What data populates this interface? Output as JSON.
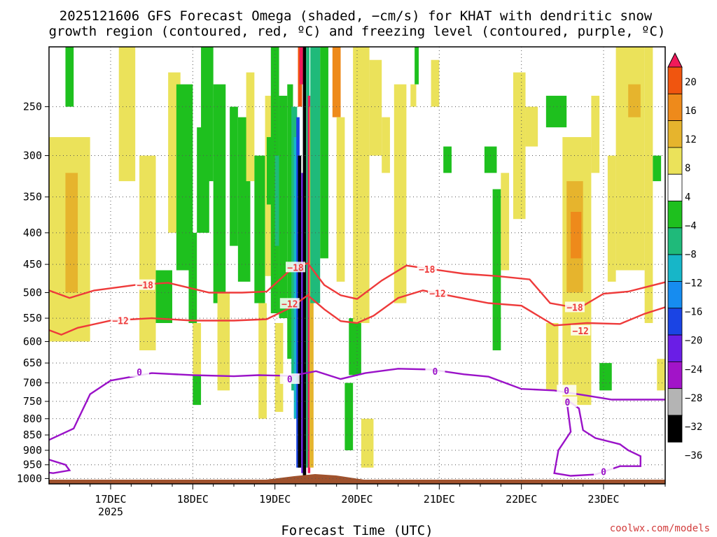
{
  "chart_data": {
    "type": "heatmap",
    "title_line1": "2025121606 GFS Forecast Omega (shaded, −cm/s) for KHAT with dendritic snow",
    "title_line2": "growth region (contoured, red, ºC) and freezing level (contoured, purple, ºC)",
    "xlabel": "Forecast Time (UTC)",
    "credit": "coolwx.com/models",
    "y_axis": {
      "ticks": [
        250,
        300,
        350,
        400,
        450,
        500,
        550,
        600,
        650,
        700,
        750,
        800,
        850,
        900,
        950,
        1000
      ],
      "range_hpa": [
        200,
        1020
      ],
      "grid": true
    },
    "x_axis": {
      "range_days": [
        16.25,
        23.75
      ],
      "ticks": [
        {
          "day": 17,
          "label": "17DEC",
          "sub": "2025"
        },
        {
          "day": 18,
          "label": "18DEC",
          "sub": ""
        },
        {
          "day": 19,
          "label": "19DEC",
          "sub": ""
        },
        {
          "day": 20,
          "label": "20DEC",
          "sub": ""
        },
        {
          "day": 21,
          "label": "21DEC",
          "sub": ""
        },
        {
          "day": 22,
          "label": "22DEC",
          "sub": ""
        },
        {
          "day": 23,
          "label": "23DEC",
          "sub": ""
        }
      ]
    },
    "colorbar": {
      "labels": [
        "20",
        "16",
        "12",
        "8",
        "4",
        "−4",
        "−8",
        "−12",
        "−16",
        "−20",
        "−24",
        "−28",
        "−32",
        "−36"
      ],
      "colors": [
        "#f0195a",
        "#f0550f",
        "#ee8a1b",
        "#e6b42d",
        "#ebe25a",
        "#ffffff",
        "#1ec01e",
        "#1fba7a",
        "#17b6c8",
        "#168cf0",
        "#1a44e4",
        "#6a1ee6",
        "#a214c8",
        "#b4b4b4",
        "#000000"
      ]
    },
    "omega_features": [
      {
        "t0": 16.25,
        "t1": 16.75,
        "p0": 280,
        "p1": 600,
        "v": 4
      },
      {
        "t0": 16.45,
        "t1": 16.6,
        "p0": 320,
        "p1": 500,
        "v": 8
      },
      {
        "t0": 17.1,
        "t1": 17.3,
        "p0": 200,
        "p1": 330,
        "v": 4
      },
      {
        "t0": 17.35,
        "t1": 17.55,
        "p0": 300,
        "p1": 620,
        "v": 4
      },
      {
        "t0": 16.45,
        "t1": 16.55,
        "p0": 200,
        "p1": 250,
        "v": -8
      },
      {
        "t0": 17.55,
        "t1": 17.75,
        "p0": 460,
        "p1": 560,
        "v": -8
      },
      {
        "t0": 17.7,
        "t1": 17.85,
        "p0": 220,
        "p1": 400,
        "v": 4
      },
      {
        "t0": 17.8,
        "t1": 18.0,
        "p0": 230,
        "p1": 460,
        "v": -8
      },
      {
        "t0": 17.95,
        "t1": 18.05,
        "p0": 400,
        "p1": 560,
        "v": -8
      },
      {
        "t0": 18.0,
        "t1": 18.1,
        "p0": 560,
        "p1": 720,
        "v": 4
      },
      {
        "t0": 18.0,
        "t1": 18.1,
        "p0": 680,
        "p1": 760,
        "v": -8
      },
      {
        "t0": 18.05,
        "t1": 18.2,
        "p0": 270,
        "p1": 400,
        "v": -8
      },
      {
        "t0": 18.1,
        "t1": 18.25,
        "p0": 200,
        "p1": 330,
        "v": -8
      },
      {
        "t0": 18.25,
        "t1": 18.4,
        "p0": 230,
        "p1": 520,
        "v": -8
      },
      {
        "t0": 18.3,
        "t1": 18.45,
        "p0": 500,
        "p1": 720,
        "v": 4
      },
      {
        "t0": 18.45,
        "t1": 18.55,
        "p0": 250,
        "p1": 420,
        "v": -8
      },
      {
        "t0": 18.55,
        "t1": 18.7,
        "p0": 260,
        "p1": 480,
        "v": -8
      },
      {
        "t0": 18.65,
        "t1": 18.75,
        "p0": 220,
        "p1": 330,
        "v": 4
      },
      {
        "t0": 18.75,
        "t1": 18.88,
        "p0": 300,
        "p1": 520,
        "v": -8
      },
      {
        "t0": 18.8,
        "t1": 18.9,
        "p0": 520,
        "p1": 800,
        "v": 4
      },
      {
        "t0": 18.88,
        "t1": 19.0,
        "p0": 240,
        "p1": 470,
        "v": 4
      },
      {
        "t0": 18.9,
        "t1": 19.0,
        "p0": 280,
        "p1": 360,
        "v": -8
      },
      {
        "t0": 18.95,
        "t1": 19.05,
        "p0": 200,
        "p1": 540,
        "v": -8
      },
      {
        "t0": 19.0,
        "t1": 19.08,
        "p0": 300,
        "p1": 420,
        "v": -12
      },
      {
        "t0": 19.0,
        "t1": 19.1,
        "p0": 560,
        "p1": 780,
        "v": 4
      },
      {
        "t0": 19.05,
        "t1": 19.15,
        "p0": 240,
        "p1": 550,
        "v": -8
      },
      {
        "t0": 19.15,
        "t1": 19.22,
        "p0": 230,
        "p1": 640,
        "v": -8
      },
      {
        "t0": 19.2,
        "t1": 19.27,
        "p0": 250,
        "p1": 720,
        "v": -12
      },
      {
        "t0": 19.23,
        "t1": 19.29,
        "p0": 280,
        "p1": 800,
        "v": -16
      },
      {
        "t0": 19.26,
        "t1": 19.3,
        "p0": 260,
        "p1": 960,
        "v": -24
      },
      {
        "t0": 19.28,
        "t1": 19.32,
        "p0": 300,
        "p1": 960,
        "v": -36
      },
      {
        "t0": 19.32,
        "t1": 19.36,
        "p0": 320,
        "p1": 980,
        "v": -28
      },
      {
        "t0": 19.34,
        "t1": 19.38,
        "p0": 200,
        "p1": 1000,
        "v": -36
      },
      {
        "t0": 19.38,
        "t1": 19.42,
        "p0": 200,
        "p1": 960,
        "v": -12
      },
      {
        "t0": 19.28,
        "t1": 19.33,
        "p0": 200,
        "p1": 250,
        "v": 16
      },
      {
        "t0": 19.3,
        "t1": 19.34,
        "p0": 200,
        "p1": 230,
        "v": 20
      },
      {
        "t0": 19.4,
        "t1": 19.43,
        "p0": 240,
        "p1": 980,
        "v": 20
      },
      {
        "t0": 19.42,
        "t1": 19.47,
        "p0": 250,
        "p1": 960,
        "v": 8
      },
      {
        "t0": 19.43,
        "t1": 19.55,
        "p0": 200,
        "p1": 520,
        "v": -12
      },
      {
        "t0": 19.55,
        "t1": 19.65,
        "p0": 200,
        "p1": 440,
        "v": -8
      },
      {
        "t0": 19.7,
        "t1": 19.8,
        "p0": 200,
        "p1": 260,
        "v": 12
      },
      {
        "t0": 19.75,
        "t1": 19.85,
        "p0": 260,
        "p1": 480,
        "v": 4
      },
      {
        "t0": 19.85,
        "t1": 19.95,
        "p0": 700,
        "p1": 900,
        "v": -8
      },
      {
        "t0": 19.9,
        "t1": 20.05,
        "p0": 550,
        "p1": 680,
        "v": -8
      },
      {
        "t0": 19.95,
        "t1": 20.15,
        "p0": 200,
        "p1": 560,
        "v": 4
      },
      {
        "t0": 20.05,
        "t1": 20.2,
        "p0": 800,
        "p1": 960,
        "v": 4
      },
      {
        "t0": 20.15,
        "t1": 20.3,
        "p0": 210,
        "p1": 300,
        "v": 4
      },
      {
        "t0": 20.3,
        "t1": 20.4,
        "p0": 260,
        "p1": 320,
        "v": 4
      },
      {
        "t0": 20.45,
        "t1": 20.6,
        "p0": 230,
        "p1": 520,
        "v": 4
      },
      {
        "t0": 20.65,
        "t1": 20.72,
        "p0": 230,
        "p1": 250,
        "v": 4
      },
      {
        "t0": 20.7,
        "t1": 20.75,
        "p0": 200,
        "p1": 230,
        "v": -8
      },
      {
        "t0": 20.9,
        "t1": 21.0,
        "p0": 210,
        "p1": 250,
        "v": 4
      },
      {
        "t0": 21.05,
        "t1": 21.15,
        "p0": 290,
        "p1": 320,
        "v": -8
      },
      {
        "t0": 21.55,
        "t1": 21.7,
        "p0": 290,
        "p1": 320,
        "v": -8
      },
      {
        "t0": 21.65,
        "t1": 21.75,
        "p0": 340,
        "p1": 620,
        "v": -8
      },
      {
        "t0": 21.75,
        "t1": 21.85,
        "p0": 320,
        "p1": 460,
        "v": 4
      },
      {
        "t0": 21.9,
        "t1": 22.05,
        "p0": 220,
        "p1": 380,
        "v": 4
      },
      {
        "t0": 22.05,
        "t1": 22.2,
        "p0": 250,
        "p1": 290,
        "v": 4
      },
      {
        "t0": 22.3,
        "t1": 22.55,
        "p0": 240,
        "p1": 270,
        "v": -8
      },
      {
        "t0": 22.3,
        "t1": 22.45,
        "p0": 560,
        "p1": 720,
        "v": 4
      },
      {
        "t0": 22.5,
        "t1": 22.85,
        "p0": 280,
        "p1": 760,
        "v": 4
      },
      {
        "t0": 22.55,
        "t1": 22.75,
        "p0": 330,
        "p1": 500,
        "v": 8
      },
      {
        "t0": 22.6,
        "t1": 22.73,
        "p0": 370,
        "p1": 440,
        "v": 12
      },
      {
        "t0": 22.85,
        "t1": 22.95,
        "p0": 240,
        "p1": 320,
        "v": 4
      },
      {
        "t0": 22.95,
        "t1": 23.1,
        "p0": 650,
        "p1": 720,
        "v": -8
      },
      {
        "t0": 23.05,
        "t1": 23.15,
        "p0": 300,
        "p1": 480,
        "v": 4
      },
      {
        "t0": 23.15,
        "t1": 23.5,
        "p0": 200,
        "p1": 460,
        "v": 4
      },
      {
        "t0": 23.3,
        "t1": 23.45,
        "p0": 230,
        "p1": 260,
        "v": 8
      },
      {
        "t0": 23.5,
        "t1": 23.6,
        "p0": 200,
        "p1": 560,
        "v": 4
      },
      {
        "t0": 23.6,
        "t1": 23.7,
        "p0": 300,
        "p1": 330,
        "v": -8
      },
      {
        "t0": 23.65,
        "t1": 23.75,
        "p0": 640,
        "p1": 720,
        "v": 4
      }
    ],
    "contours": [
      {
        "name": "minus18",
        "label": "−18",
        "color": "#ee3a3a",
        "points": [
          [
            16.25,
            496
          ],
          [
            16.5,
            510
          ],
          [
            16.8,
            496
          ],
          [
            17.3,
            486
          ],
          [
            17.7,
            482
          ],
          [
            18.2,
            500
          ],
          [
            18.6,
            500
          ],
          [
            18.9,
            498
          ],
          [
            19.2,
            458
          ],
          [
            19.4,
            448
          ],
          [
            19.6,
            486
          ],
          [
            19.8,
            505
          ],
          [
            20.0,
            512
          ],
          [
            20.3,
            478
          ],
          [
            20.6,
            452
          ],
          [
            20.9,
            458
          ],
          [
            21.3,
            466
          ],
          [
            21.7,
            470
          ],
          [
            22.1,
            476
          ],
          [
            22.35,
            520
          ],
          [
            22.7,
            530
          ],
          [
            23.0,
            502
          ],
          [
            23.3,
            498
          ],
          [
            23.75,
            481
          ]
        ],
        "labels": [
          [
            17.42,
            486
          ],
          [
            19.25,
            455
          ],
          [
            20.85,
            458
          ],
          [
            22.65,
            528
          ]
        ]
      },
      {
        "name": "minus12",
        "label": "−12",
        "color": "#ee3a3a",
        "points": [
          [
            16.25,
            575
          ],
          [
            16.4,
            585
          ],
          [
            16.6,
            570
          ],
          [
            17.0,
            555
          ],
          [
            17.5,
            550
          ],
          [
            18.0,
            555
          ],
          [
            18.5,
            555
          ],
          [
            18.9,
            552
          ],
          [
            19.2,
            528
          ],
          [
            19.4,
            505
          ],
          [
            19.6,
            532
          ],
          [
            19.8,
            556
          ],
          [
            20.0,
            560
          ],
          [
            20.2,
            545
          ],
          [
            20.5,
            510
          ],
          [
            20.8,
            496
          ],
          [
            21.2,
            508
          ],
          [
            21.6,
            520
          ],
          [
            22.0,
            525
          ],
          [
            22.4,
            565
          ],
          [
            22.8,
            560
          ],
          [
            23.2,
            562
          ],
          [
            23.5,
            541
          ],
          [
            23.75,
            528
          ]
        ],
        "labels": [
          [
            17.12,
            555
          ],
          [
            19.18,
            521
          ],
          [
            20.98,
            501
          ],
          [
            22.72,
            576
          ]
        ]
      },
      {
        "name": "zero_iso",
        "label": "0",
        "color": "#9a12c8",
        "points": [
          [
            16.25,
            866
          ],
          [
            16.55,
            830
          ],
          [
            16.75,
            730
          ],
          [
            17.0,
            694
          ],
          [
            17.5,
            675
          ],
          [
            18.0,
            680
          ],
          [
            18.5,
            683
          ],
          [
            18.8,
            680
          ],
          [
            19.2,
            682
          ],
          [
            19.5,
            670
          ],
          [
            19.8,
            690
          ],
          [
            20.1,
            675
          ],
          [
            20.5,
            664
          ],
          [
            20.9,
            666
          ],
          [
            21.3,
            678
          ],
          [
            21.6,
            684
          ],
          [
            22.0,
            716
          ],
          [
            22.4,
            720
          ],
          [
            22.8,
            734
          ],
          [
            23.1,
            745
          ],
          [
            23.75,
            745
          ]
        ],
        "labels": [
          [
            17.35,
            672
          ],
          [
            19.18,
            690
          ],
          [
            20.95,
            670
          ],
          [
            22.55,
            720
          ]
        ]
      },
      {
        "name": "zero_pocket_sfc",
        "label": "0",
        "color": "#9a12c8",
        "points": [
          [
            16.25,
            932
          ],
          [
            16.45,
            950
          ],
          [
            16.5,
            970
          ],
          [
            16.3,
            980
          ],
          [
            16.25,
            978
          ]
        ],
        "labels": []
      },
      {
        "name": "zero_pocket_east",
        "label": "0",
        "color": "#9a12c8",
        "points": [
          [
            22.55,
            745
          ],
          [
            22.6,
            840
          ],
          [
            22.45,
            900
          ],
          [
            22.4,
            980
          ],
          [
            22.6,
            990
          ],
          [
            22.9,
            985
          ],
          [
            23.2,
            955
          ],
          [
            23.45,
            955
          ],
          [
            23.45,
            920
          ],
          [
            23.3,
            900
          ],
          [
            23.2,
            880
          ],
          [
            22.9,
            860
          ],
          [
            22.75,
            835
          ],
          [
            22.7,
            770
          ],
          [
            22.55,
            745
          ]
        ],
        "labels": [
          [
            22.56,
            752
          ],
          [
            23.0,
            975
          ]
        ]
      }
    ]
  }
}
